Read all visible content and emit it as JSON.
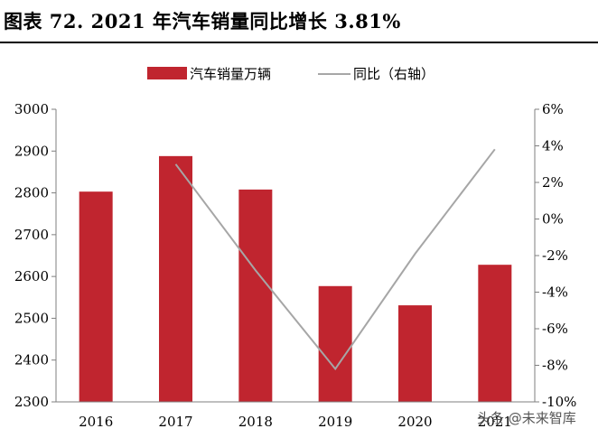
{
  "title": "图表 72. 2021 年汽车销量同比增长 3.81%",
  "watermark": "头条 @未来智库",
  "colors": {
    "bar": "#C0252F",
    "line": "#A6A6A6",
    "axis": "#7F7F7F",
    "text": "#000000"
  },
  "chart_data": {
    "type": "bar+line",
    "categories": [
      "2016",
      "2017",
      "2018",
      "2019",
      "2020",
      "2021"
    ],
    "series": [
      {
        "name": "汽车销量万辆",
        "type": "bar",
        "axis": "left",
        "values": [
          2803,
          2888,
          2808,
          2577,
          2531,
          2628
        ]
      },
      {
        "name": "同比（右轴）",
        "type": "line",
        "axis": "right",
        "values": [
          null,
          3.0,
          -2.8,
          -8.2,
          -1.9,
          3.81
        ]
      }
    ],
    "y_left": {
      "min": 2300,
      "max": 3000,
      "ticks": [
        "2300",
        "2400",
        "2500",
        "2600",
        "2700",
        "2800",
        "2900",
        "3000"
      ]
    },
    "y_right": {
      "min": -10,
      "max": 6,
      "ticks": [
        "-10%",
        "-8%",
        "-6%",
        "-4%",
        "-2%",
        "0%",
        "2%",
        "4%",
        "6%"
      ]
    },
    "legend_position": "top-center",
    "grid": false
  }
}
